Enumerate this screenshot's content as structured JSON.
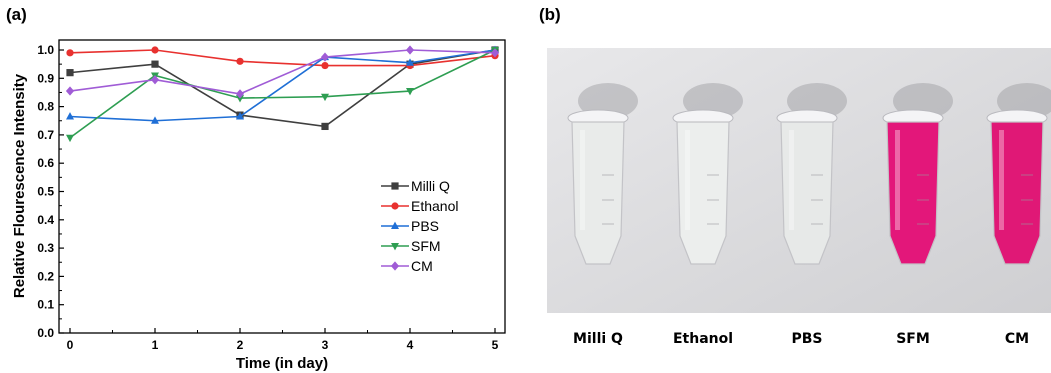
{
  "panels": {
    "a": "(a)",
    "b": "(b)"
  },
  "chart_data": {
    "type": "line",
    "xlabel": "Time (in day)",
    "ylabel": "Relative Flourescence Intensity",
    "xlim": [
      0,
      5
    ],
    "ylim": [
      0.0,
      1.0
    ],
    "x": [
      0,
      1,
      2,
      3,
      4,
      5
    ],
    "x_ticks": [
      "0",
      "1",
      "2",
      "3",
      "4",
      "5"
    ],
    "y_ticks": [
      "0.0",
      "0.1",
      "0.2",
      "0.3",
      "0.4",
      "0.5",
      "0.6",
      "0.7",
      "0.8",
      "0.9",
      "1.0"
    ],
    "legend_position": "center-right",
    "grid": false,
    "series": [
      {
        "name": "Milli Q",
        "color": "#3f3f3f",
        "marker": "square",
        "values": [
          0.92,
          0.95,
          0.77,
          0.73,
          0.95,
          1.0
        ]
      },
      {
        "name": "Ethanol",
        "color": "#e8312f",
        "marker": "circle",
        "values": [
          0.99,
          1.0,
          0.96,
          0.945,
          0.945,
          0.98
        ]
      },
      {
        "name": "PBS",
        "color": "#1f6fd6",
        "marker": "triangle-up",
        "values": [
          0.765,
          0.75,
          0.765,
          0.975,
          0.955,
          1.0
        ]
      },
      {
        "name": "SFM",
        "color": "#2e9e52",
        "marker": "triangle-down",
        "values": [
          0.69,
          0.91,
          0.83,
          0.835,
          0.855,
          1.0
        ]
      },
      {
        "name": "CM",
        "color": "#a05cd6",
        "marker": "diamond",
        "values": [
          0.855,
          0.895,
          0.845,
          0.975,
          1.0,
          0.99
        ]
      }
    ]
  },
  "photo": {
    "background_color": "#dcdcde",
    "tubes": [
      {
        "label": "Milli Q",
        "liquid_color": "#e9ebea"
      },
      {
        "label": "Ethanol",
        "liquid_color": "#eceeed"
      },
      {
        "label": "PBS",
        "liquid_color": "#e7e9e8"
      },
      {
        "label": "SFM",
        "liquid_color": "#e3177a"
      },
      {
        "label": "CM",
        "liquid_color": "#e01876"
      }
    ]
  }
}
